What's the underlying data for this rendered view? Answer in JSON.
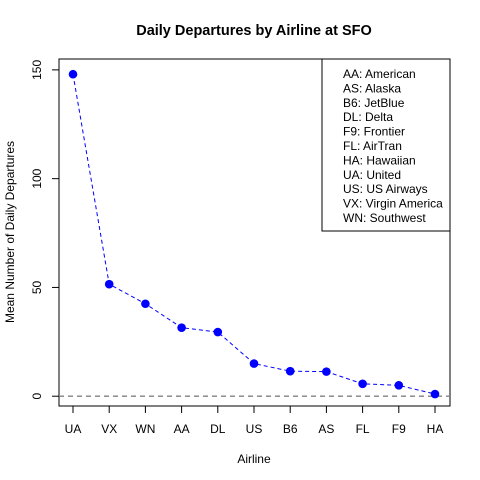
{
  "chart_data": {
    "type": "line",
    "title": "Daily Departures by Airline at SFO",
    "xlabel": "Airline",
    "ylabel": "Mean Number of Daily Departures",
    "categories": [
      "UA",
      "VX",
      "WN",
      "AA",
      "DL",
      "US",
      "B6",
      "AS",
      "FL",
      "F9",
      "HA"
    ],
    "values": [
      148,
      51.5,
      42.5,
      31.5,
      29.5,
      15,
      11.5,
      11.3,
      5.7,
      5,
      1
    ],
    "ylim": [
      -4.5,
      155
    ],
    "yticks": [
      0,
      50,
      100,
      150
    ],
    "reference_line": 0,
    "grid": false,
    "legend_position": "top-right",
    "legend": [
      "AA: American",
      "AS: Alaska",
      "B6: JetBlue",
      "DL: Delta",
      "F9: Frontier",
      "FL: AirTran",
      "HA: Hawaiian",
      "UA: United",
      "US: US Airways",
      "VX: Virgin America",
      "WN: Southwest"
    ],
    "colors": {
      "series_line": "#0000ff",
      "series_point": "#0000ff",
      "reference_line": "#808080",
      "axis": "#000000"
    }
  }
}
